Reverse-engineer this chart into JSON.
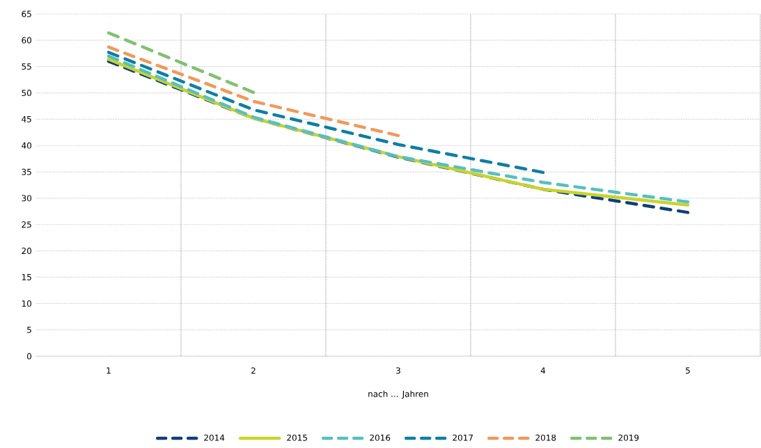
{
  "chart_data": {
    "type": "line",
    "xlabel": "nach ... Jahren",
    "categories": [
      "1",
      "2",
      "3",
      "4",
      "5"
    ],
    "ylim": [
      0,
      65
    ],
    "yticks": [
      0,
      5,
      10,
      15,
      20,
      25,
      30,
      35,
      40,
      45,
      50,
      55,
      60,
      65
    ],
    "grid": true,
    "legend": "bottom",
    "series": [
      {
        "name": "2014",
        "color": "#0e3f7a",
        "line_style": "dashed",
        "values": [
          56.0,
          45.2,
          37.8,
          31.7,
          27.3
        ]
      },
      {
        "name": "2015",
        "color": "#c8d42a",
        "line_style": "solid",
        "values": [
          56.4,
          45.2,
          37.9,
          31.7,
          28.7
        ]
      },
      {
        "name": "2016",
        "color": "#56c0c0",
        "line_style": "dashed",
        "values": [
          57.0,
          45.4,
          37.9,
          33.0,
          29.3
        ]
      },
      {
        "name": "2017",
        "color": "#0b7fa6",
        "line_style": "dashed",
        "values": [
          57.7,
          46.8,
          40.2,
          34.9,
          null
        ]
      },
      {
        "name": "2018",
        "color": "#f0995a",
        "line_style": "dashed",
        "values": [
          58.7,
          48.4,
          41.9,
          null,
          null
        ]
      },
      {
        "name": "2019",
        "color": "#7fc170",
        "line_style": "dashed",
        "values": [
          61.4,
          50.1,
          null,
          null,
          null
        ]
      }
    ]
  }
}
